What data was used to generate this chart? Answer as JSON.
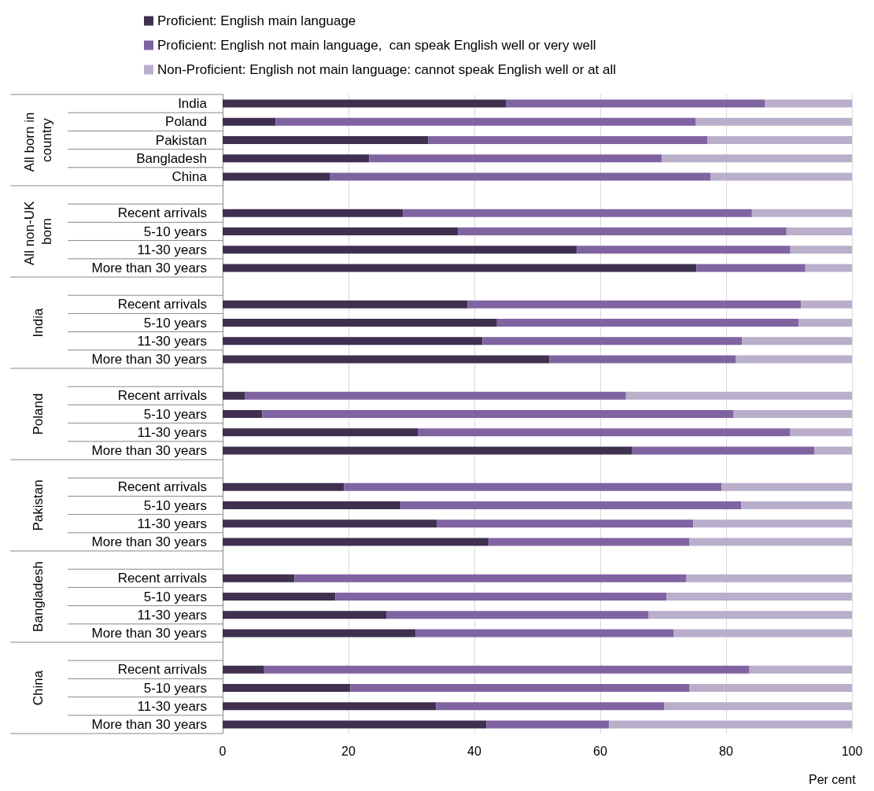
{
  "chart_data": {
    "type": "bar",
    "orientation": "horizontal",
    "stacked": true,
    "categories": [
      "India",
      "Poland",
      "Pakistan",
      "Bangladesh",
      "China",
      null,
      "Recent arrivals",
      "5-10 years",
      "11-30 years",
      "More than 30 years",
      null,
      "Recent arrivals",
      "5-10 years",
      "11-30 years",
      "More than 30 years",
      null,
      "Recent arrivals",
      "5-10 years",
      "11-30 years",
      "More than 30 years",
      null,
      "Recent arrivals",
      "5-10 years",
      "11-30 years",
      "More than 30 years",
      null,
      "Recent arrivals",
      "5-10 years",
      "11-30 years",
      "More than 30 years",
      null,
      "Recent arrivals",
      "5-10 years",
      "11-30 years",
      "More than 30 years"
    ],
    "series": [
      {
        "name": "Proficient: English main language",
        "color": "#3f3050",
        "values": [
          45.0,
          8.4,
          32.7,
          23.3,
          17.0,
          null,
          28.7,
          37.4,
          56.3,
          75.3,
          null,
          38.9,
          43.6,
          41.3,
          51.9,
          null,
          3.5,
          6.3,
          31.0,
          65.0,
          null,
          19.3,
          28.3,
          34.0,
          42.3,
          null,
          11.4,
          17.9,
          26.0,
          30.7,
          null,
          6.6,
          20.3,
          33.9,
          41.9
        ]
      },
      {
        "name": "Proficient: English not main language,  can speak English well or very well",
        "color": "#8064a2",
        "values": [
          41.2,
          66.8,
          44.3,
          46.5,
          60.5,
          null,
          55.4,
          52.2,
          33.9,
          17.3,
          null,
          53.0,
          47.9,
          41.2,
          29.6,
          null,
          60.6,
          74.9,
          59.2,
          29.0,
          null,
          60.0,
          54.1,
          40.8,
          31.9,
          null,
          62.3,
          52.6,
          41.7,
          41.0,
          null,
          77.1,
          53.9,
          36.3,
          19.5
        ]
      },
      {
        "name": "Non-Proficient: English not main language: cannot speak English well or at all",
        "color": "#b9afcb",
        "values": [
          13.8,
          24.8,
          23.0,
          30.2,
          22.5,
          null,
          15.9,
          10.4,
          9.8,
          7.4,
          null,
          8.1,
          8.5,
          17.5,
          18.5,
          null,
          35.9,
          18.8,
          9.8,
          6.0,
          null,
          20.7,
          17.6,
          25.2,
          25.8,
          null,
          26.3,
          29.5,
          32.3,
          28.3,
          null,
          16.3,
          25.8,
          29.8,
          38.6
        ]
      }
    ],
    "annotations": [
      "All born in country",
      "All non-UK born",
      "India",
      "Poland",
      "Pakistan",
      "Bangladesh",
      "China"
    ],
    "xlabel": "Per cent",
    "xlim": [
      0,
      100
    ],
    "xticks": [
      0,
      20,
      40,
      60,
      80,
      100
    ],
    "grid": "x",
    "legend": "top"
  }
}
